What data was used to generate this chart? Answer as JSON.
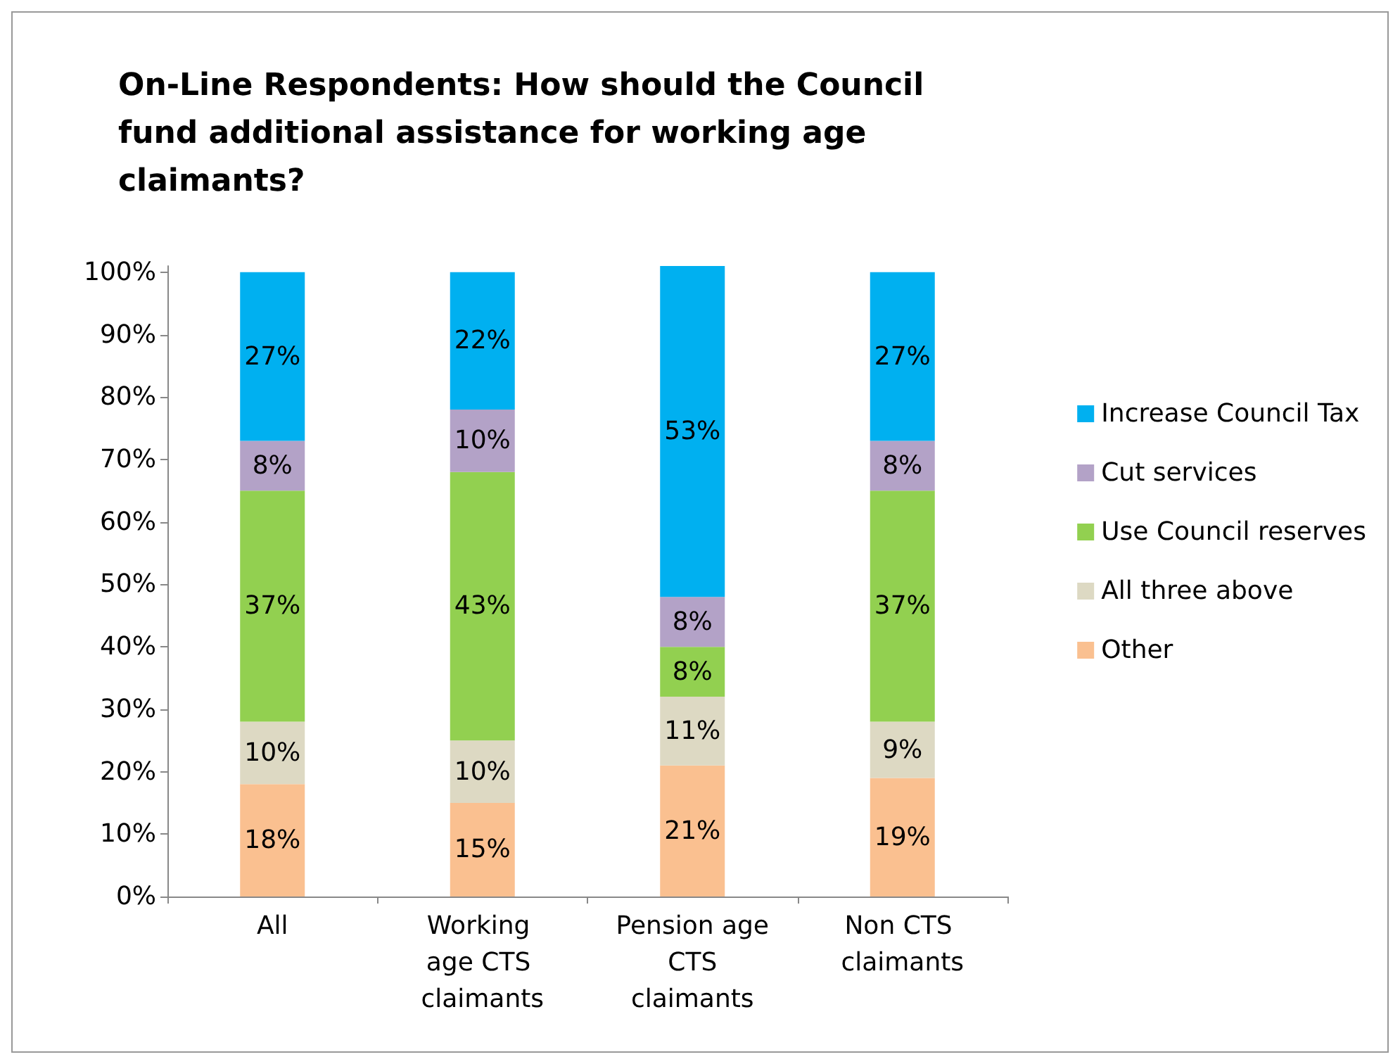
{
  "chart_data": {
    "type": "bar",
    "stacked": true,
    "title": "On-Line Respondents: How should the Council fund additional assistance for working age  claimants?",
    "categories": [
      "All",
      "Working age CTS claimants",
      "Pension age CTS claimants",
      "Non CTS claimants"
    ],
    "series": [
      {
        "name": "Other",
        "color": "#fac090",
        "values": [
          18,
          15,
          21,
          19
        ],
        "value_labels": [
          "18%",
          "15%",
          "21%",
          "19%"
        ]
      },
      {
        "name": "All three above",
        "color": "#ddd9c3",
        "values": [
          10,
          10,
          11,
          9
        ],
        "value_labels": [
          "10%",
          "10%",
          "11%",
          "9%"
        ]
      },
      {
        "name": "Use Council reserves",
        "color": "#92d050",
        "values": [
          37,
          43,
          8,
          37
        ],
        "value_labels": [
          "37%",
          "43%",
          "8%",
          "37%"
        ]
      },
      {
        "name": "Cut services",
        "color": "#b3a2c7",
        "values": [
          8,
          10,
          8,
          8
        ],
        "value_labels": [
          "8%",
          "10%",
          "8%",
          "8%"
        ]
      },
      {
        "name": "Increase Council Tax",
        "color": "#00b0f0",
        "values": [
          27,
          22,
          53,
          27
        ],
        "value_labels": [
          "27%",
          "22%",
          "53%",
          "27%"
        ]
      }
    ],
    "ylim": [
      0,
      101
    ],
    "yticks": [
      {
        "value": 0,
        "label": "0%"
      },
      {
        "value": 10,
        "label": "10%"
      },
      {
        "value": 20,
        "label": "20%"
      },
      {
        "value": 30,
        "label": "30%"
      },
      {
        "value": 40,
        "label": "40%"
      },
      {
        "value": 50,
        "label": "50%"
      },
      {
        "value": 60,
        "label": "60%"
      },
      {
        "value": 70,
        "label": "70%"
      },
      {
        "value": 80,
        "label": "80%"
      },
      {
        "value": 90,
        "label": "90%"
      },
      {
        "value": 100,
        "label": "100%"
      }
    ],
    "grid": false,
    "legend": "right"
  }
}
